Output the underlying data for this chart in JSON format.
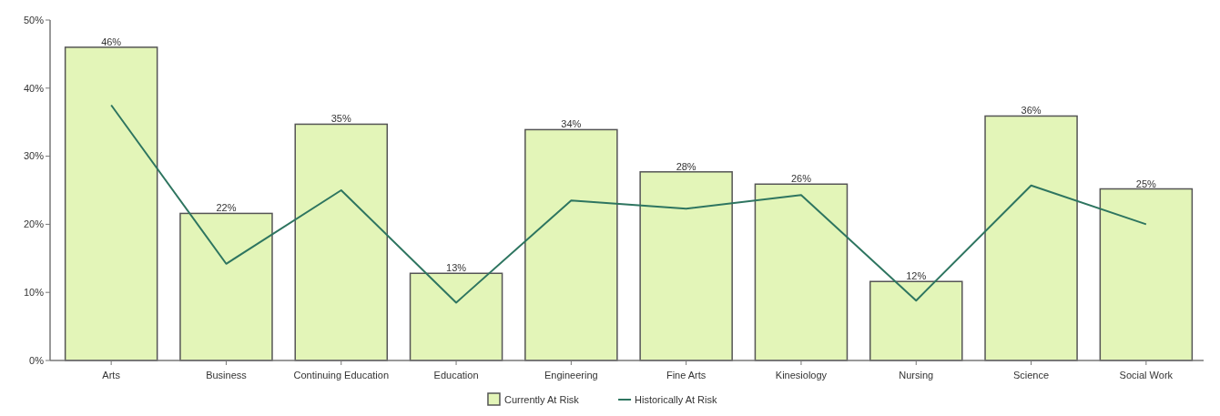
{
  "chart_data": {
    "type": "bar",
    "categories": [
      "Arts",
      "Business",
      "Continuing Education",
      "Education",
      "Engineering",
      "Fine Arts",
      "Kinesiology",
      "Nursing",
      "Science",
      "Social Work"
    ],
    "series": [
      {
        "name": "Currently At Risk",
        "color": "#e3f5b8",
        "values": [
          46.0,
          21.6,
          34.7,
          12.8,
          33.9,
          27.7,
          25.9,
          11.6,
          35.9,
          25.2
        ],
        "value_labels": [
          "46%",
          "22%",
          "35%",
          "13%",
          "34%",
          "28%",
          "26%",
          "12%",
          "36%",
          "25%"
        ]
      },
      {
        "name": "Historically At Risk",
        "type": "line",
        "color": "#2e7560",
        "values": [
          37.5,
          14.2,
          25.0,
          8.5,
          23.5,
          22.3,
          24.3,
          8.8,
          25.7,
          20.0
        ]
      }
    ],
    "ylim": [
      0,
      50
    ],
    "yticks": [
      {
        "value": 0,
        "label": "0%"
      },
      {
        "value": 10,
        "label": "10%"
      },
      {
        "value": 20,
        "label": "20%"
      },
      {
        "value": 30,
        "label": "30%"
      },
      {
        "value": 40,
        "label": "40%"
      },
      {
        "value": 50,
        "label": "50%"
      }
    ],
    "grid": false,
    "legend": "bottom",
    "marker": "none",
    "line_style": "solid"
  }
}
